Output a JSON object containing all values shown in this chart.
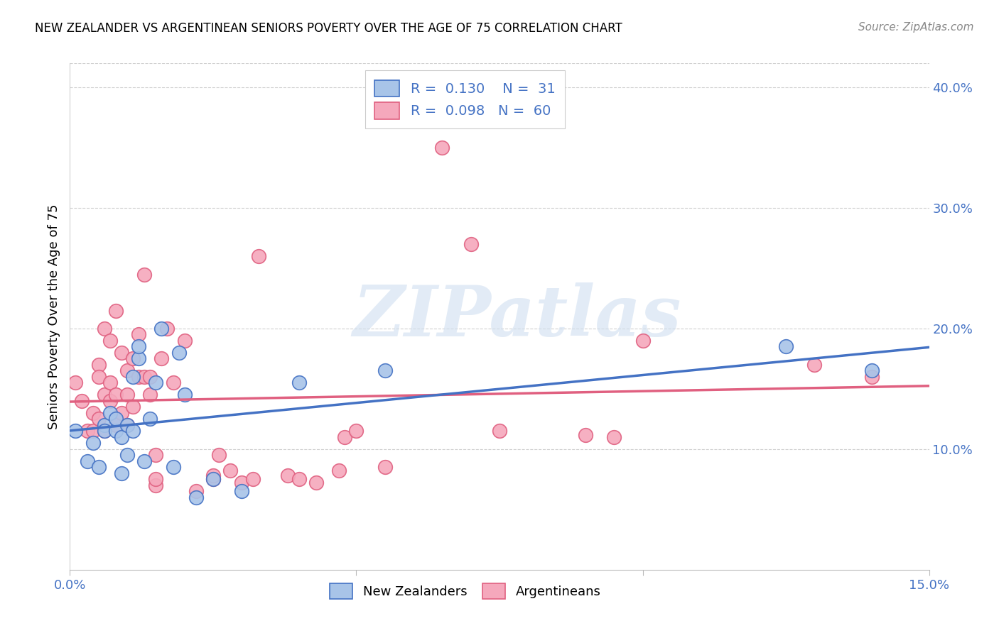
{
  "title": "NEW ZEALANDER VS ARGENTINEAN SENIORS POVERTY OVER THE AGE OF 75 CORRELATION CHART",
  "source": "Source: ZipAtlas.com",
  "ylabel": "Seniors Poverty Over the Age of 75",
  "x_min": 0.0,
  "x_max": 0.15,
  "y_min": 0.0,
  "y_max": 0.42,
  "x_ticks": [
    0.0,
    0.05,
    0.1,
    0.15
  ],
  "x_tick_labels": [
    "0.0%",
    "",
    "",
    "15.0%"
  ],
  "y_ticks": [
    0.0,
    0.1,
    0.2,
    0.3,
    0.4
  ],
  "y_tick_labels": [
    "",
    "10.0%",
    "20.0%",
    "30.0%",
    "40.0%"
  ],
  "nz_R": 0.13,
  "nz_N": 31,
  "arg_R": 0.098,
  "arg_N": 60,
  "nz_color": "#a8c4e8",
  "arg_color": "#f5a8bc",
  "nz_line_color": "#4472c4",
  "arg_line_color": "#e06080",
  "watermark_text": "ZIPatlas",
  "nz_x": [
    0.001,
    0.003,
    0.004,
    0.005,
    0.006,
    0.006,
    0.007,
    0.008,
    0.008,
    0.009,
    0.009,
    0.01,
    0.01,
    0.011,
    0.011,
    0.012,
    0.012,
    0.013,
    0.014,
    0.015,
    0.016,
    0.018,
    0.019,
    0.02,
    0.022,
    0.025,
    0.03,
    0.04,
    0.055,
    0.125,
    0.14
  ],
  "nz_y": [
    0.115,
    0.09,
    0.105,
    0.085,
    0.12,
    0.115,
    0.13,
    0.115,
    0.125,
    0.08,
    0.11,
    0.095,
    0.12,
    0.16,
    0.115,
    0.175,
    0.185,
    0.09,
    0.125,
    0.155,
    0.2,
    0.085,
    0.18,
    0.145,
    0.06,
    0.075,
    0.065,
    0.155,
    0.165,
    0.185,
    0.165
  ],
  "arg_x": [
    0.001,
    0.002,
    0.003,
    0.004,
    0.004,
    0.005,
    0.005,
    0.005,
    0.006,
    0.006,
    0.006,
    0.007,
    0.007,
    0.007,
    0.008,
    0.008,
    0.008,
    0.009,
    0.009,
    0.01,
    0.01,
    0.01,
    0.011,
    0.011,
    0.012,
    0.012,
    0.013,
    0.013,
    0.014,
    0.014,
    0.015,
    0.015,
    0.015,
    0.016,
    0.017,
    0.018,
    0.02,
    0.022,
    0.025,
    0.025,
    0.026,
    0.028,
    0.03,
    0.032,
    0.033,
    0.038,
    0.04,
    0.043,
    0.047,
    0.048,
    0.05,
    0.055,
    0.065,
    0.07,
    0.075,
    0.09,
    0.095,
    0.1,
    0.13,
    0.14
  ],
  "arg_y": [
    0.155,
    0.14,
    0.115,
    0.13,
    0.115,
    0.17,
    0.125,
    0.16,
    0.2,
    0.115,
    0.145,
    0.19,
    0.14,
    0.155,
    0.215,
    0.12,
    0.145,
    0.18,
    0.13,
    0.165,
    0.12,
    0.145,
    0.175,
    0.135,
    0.16,
    0.195,
    0.245,
    0.16,
    0.145,
    0.16,
    0.07,
    0.075,
    0.095,
    0.175,
    0.2,
    0.155,
    0.19,
    0.065,
    0.075,
    0.078,
    0.095,
    0.082,
    0.072,
    0.075,
    0.26,
    0.078,
    0.075,
    0.072,
    0.082,
    0.11,
    0.115,
    0.085,
    0.35,
    0.27,
    0.115,
    0.112,
    0.11,
    0.19,
    0.17,
    0.16
  ]
}
